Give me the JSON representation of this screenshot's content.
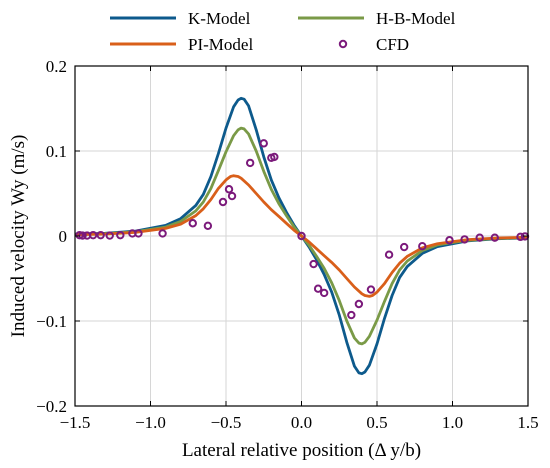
{
  "chart_data": {
    "type": "line",
    "xlabel": "Lateral relative position (Δ y/b)",
    "ylabel": "Induced velocity Wy (m/s)",
    "xlim": [
      -1.5,
      1.5
    ],
    "ylim": [
      -0.2,
      0.2
    ],
    "x_ticks": [
      -1.5,
      -1.0,
      -0.5,
      0,
      0.5,
      1.0,
      1.5
    ],
    "x_tick_labels": [
      "−1.5",
      "−1.0",
      "−0.5",
      "0.0",
      "0.5",
      "1.0",
      "1.5"
    ],
    "y_ticks": [
      -0.2,
      -0.1,
      0,
      0.1,
      0.2
    ],
    "y_tick_labels": [
      "−0.2",
      "−0.1",
      "0",
      "0.1",
      "0.2"
    ],
    "grid": true,
    "legend_position": "top, outside plot, two columns",
    "series": [
      {
        "name": "K-Model",
        "style": "line",
        "color": "#0d5a8c",
        "x": [
          -1.5,
          -1.3,
          -1.1,
          -0.9,
          -0.8,
          -0.7,
          -0.65,
          -0.6,
          -0.55,
          -0.5,
          -0.45,
          -0.42,
          -0.4,
          -0.38,
          -0.35,
          -0.3,
          -0.25,
          -0.2,
          -0.15,
          -0.1,
          -0.05,
          0,
          0.05,
          0.1,
          0.15,
          0.2,
          0.25,
          0.3,
          0.35,
          0.38,
          0.4,
          0.42,
          0.45,
          0.5,
          0.55,
          0.6,
          0.65,
          0.7,
          0.8,
          0.9,
          1.1,
          1.3,
          1.5
        ],
        "y": [
          0.0022,
          0.0032,
          0.0058,
          0.0125,
          0.0205,
          0.036,
          0.049,
          0.07,
          0.097,
          0.127,
          0.152,
          0.16,
          0.162,
          0.161,
          0.153,
          0.125,
          0.093,
          0.066,
          0.045,
          0.028,
          0.013,
          0,
          -0.013,
          -0.028,
          -0.045,
          -0.066,
          -0.093,
          -0.125,
          -0.153,
          -0.161,
          -0.162,
          -0.16,
          -0.152,
          -0.127,
          -0.097,
          -0.07,
          -0.049,
          -0.036,
          -0.0205,
          -0.0125,
          -0.0058,
          -0.0032,
          -0.0022
        ]
      },
      {
        "name": "H-B-Model",
        "style": "line",
        "color": "#7a9a47",
        "x": [
          -1.5,
          -1.3,
          -1.1,
          -0.9,
          -0.8,
          -0.7,
          -0.65,
          -0.6,
          -0.55,
          -0.5,
          -0.45,
          -0.42,
          -0.4,
          -0.38,
          -0.35,
          -0.3,
          -0.25,
          -0.2,
          -0.15,
          -0.1,
          -0.05,
          0,
          0.05,
          0.1,
          0.15,
          0.2,
          0.25,
          0.3,
          0.35,
          0.38,
          0.4,
          0.42,
          0.45,
          0.5,
          0.55,
          0.6,
          0.65,
          0.7,
          0.8,
          0.9,
          1.1,
          1.3,
          1.5
        ],
        "y": [
          0.0018,
          0.0028,
          0.005,
          0.0105,
          0.0172,
          0.0295,
          0.04,
          0.056,
          0.077,
          0.099,
          0.118,
          0.125,
          0.127,
          0.126,
          0.12,
          0.1,
          0.076,
          0.055,
          0.038,
          0.024,
          0.011,
          0,
          -0.011,
          -0.024,
          -0.038,
          -0.055,
          -0.076,
          -0.1,
          -0.12,
          -0.126,
          -0.127,
          -0.125,
          -0.118,
          -0.099,
          -0.077,
          -0.056,
          -0.04,
          -0.0295,
          -0.0172,
          -0.0105,
          -0.005,
          -0.0028,
          -0.0018
        ]
      },
      {
        "name": "PI-Model",
        "style": "line",
        "color": "#d95f1a",
        "x": [
          -1.5,
          -1.3,
          -1.1,
          -0.9,
          -0.8,
          -0.7,
          -0.65,
          -0.6,
          -0.55,
          -0.5,
          -0.47,
          -0.45,
          -0.42,
          -0.4,
          -0.35,
          -0.3,
          -0.25,
          -0.2,
          -0.15,
          -0.1,
          -0.05,
          0,
          0.05,
          0.1,
          0.15,
          0.2,
          0.25,
          0.3,
          0.35,
          0.4,
          0.42,
          0.45,
          0.47,
          0.5,
          0.55,
          0.6,
          0.65,
          0.7,
          0.8,
          0.9,
          1.1,
          1.3,
          1.5
        ],
        "y": [
          0.0015,
          0.0024,
          0.0042,
          0.009,
          0.014,
          0.024,
          0.032,
          0.043,
          0.056,
          0.066,
          0.07,
          0.071,
          0.07,
          0.068,
          0.06,
          0.05,
          0.04,
          0.031,
          0.023,
          0.015,
          0.007,
          0,
          -0.007,
          -0.015,
          -0.023,
          -0.031,
          -0.04,
          -0.05,
          -0.06,
          -0.068,
          -0.07,
          -0.071,
          -0.07,
          -0.066,
          -0.056,
          -0.043,
          -0.032,
          -0.024,
          -0.014,
          -0.009,
          -0.0042,
          -0.0024,
          -0.0015
        ]
      },
      {
        "name": "CFD",
        "style": "markers",
        "color": "#7b1a7b",
        "x": [
          -1.47,
          -1.45,
          -1.42,
          -1.38,
          -1.33,
          -1.27,
          -1.2,
          -1.12,
          -1.08,
          -0.92,
          -0.72,
          -0.62,
          -0.52,
          -0.48,
          -0.46,
          -0.34,
          -0.25,
          -0.2,
          -0.18,
          0,
          0.08,
          0.11,
          0.15,
          0.33,
          0.38,
          0.46,
          0.58,
          0.68,
          0.8,
          0.98,
          1.08,
          1.18,
          1.28,
          1.45,
          1.48
        ],
        "y": [
          0.001,
          0.0005,
          0.0005,
          0.001,
          0.001,
          0.0005,
          0.001,
          0.003,
          0.003,
          0.003,
          0.015,
          0.012,
          0.04,
          0.055,
          0.047,
          0.086,
          0.109,
          0.092,
          0.093,
          0,
          -0.033,
          -0.062,
          -0.067,
          -0.093,
          -0.08,
          -0.063,
          -0.022,
          -0.013,
          -0.012,
          -0.005,
          -0.004,
          -0.002,
          -0.002,
          -0.001,
          -0.0005
        ]
      }
    ]
  }
}
